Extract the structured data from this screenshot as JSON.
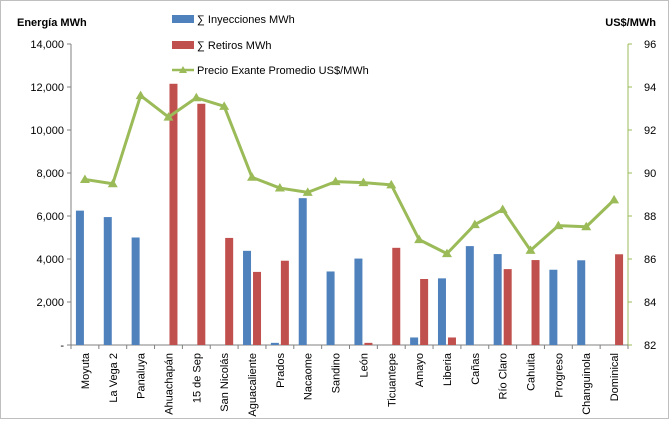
{
  "chart_data": {
    "type": "bar",
    "categories": [
      "Moyuta",
      "La Vega 2",
      "Panaluya",
      "Ahuachapán",
      "15 de Sep",
      "San Nicolás",
      "Aguacaliente",
      "Prados",
      "Nacaome",
      "Sandino",
      "León",
      "Ticuantepe",
      "Amayo",
      "Liberia",
      "Cañas",
      "Río Claro",
      "Cahuita",
      "Progreso",
      "Changuinola",
      "Dominical"
    ],
    "series": [
      {
        "name": "∑ Inyecciones MWh",
        "type": "bar",
        "axis": "left",
        "color": "#4f81bd",
        "values": [
          6250,
          5950,
          5000,
          0,
          0,
          0,
          4380,
          100,
          6830,
          3420,
          4020,
          0,
          350,
          3100,
          4600,
          4230,
          0,
          3500,
          3940,
          0
        ]
      },
      {
        "name": "∑ Retiros MWh",
        "type": "bar",
        "axis": "left",
        "color": "#c0504d",
        "values": [
          0,
          0,
          0,
          12150,
          11220,
          4980,
          3400,
          3920,
          0,
          0,
          100,
          4520,
          3070,
          350,
          0,
          3530,
          3950,
          0,
          0,
          4220
        ]
      },
      {
        "name": "Precio Exante Promedio US$/MWh",
        "type": "line",
        "axis": "right",
        "color": "#9bbb59",
        "values": [
          89.7,
          89.5,
          93.6,
          92.6,
          93.5,
          93.1,
          89.8,
          89.3,
          89.1,
          89.6,
          89.55,
          89.45,
          86.9,
          86.25,
          87.6,
          88.3,
          86.4,
          87.55,
          87.5,
          88.75
        ]
      }
    ],
    "ylabel": "Energía MWh",
    "y2label": "US$/MWh",
    "ylim": [
      0,
      14000
    ],
    "y2lim": [
      82,
      96
    ],
    "yticks": [
      "-",
      "2,000",
      "4,000",
      "6,000",
      "8,000",
      "10,000",
      "12,000",
      "14,000"
    ],
    "y2ticks": [
      "82",
      "84",
      "86",
      "88",
      "90",
      "92",
      "94",
      "96"
    ],
    "legend": "top-center",
    "grid": false
  }
}
